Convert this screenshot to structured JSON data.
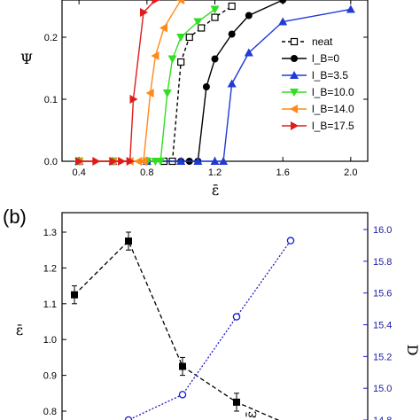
{
  "chart_data": [
    {
      "type": "line",
      "panel_label": "",
      "xlabel": "ε̄",
      "ylabel": "Ψ",
      "xlim": [
        0.3,
        2.1
      ],
      "ylim": [
        0.0,
        0.26
      ],
      "xticks": [
        "0.4",
        "0.8",
        "1.2",
        "1.6",
        "2.0"
      ],
      "yticks": [
        "0.0",
        "0.1",
        "0.2"
      ],
      "legend_position": "inside-lower-right",
      "series": [
        {
          "name": "neat",
          "color": "#000000",
          "marker": "open-square",
          "dash": true,
          "x": [
            0.4,
            0.6,
            0.8,
            0.9,
            0.95,
            1.0,
            1.05,
            1.12,
            1.2,
            1.3
          ],
          "y": [
            0.0,
            0.0,
            0.0,
            0.0,
            0.0,
            0.16,
            0.2,
            0.215,
            0.232,
            0.25
          ]
        },
        {
          "name": "l_B=0",
          "color": "#000000",
          "marker": "filled-circle",
          "dash": false,
          "x": [
            0.4,
            0.6,
            0.8,
            1.0,
            1.05,
            1.1,
            1.15,
            1.2,
            1.3,
            1.4,
            1.6
          ],
          "y": [
            0.0,
            0.0,
            0.0,
            0.0,
            0.0,
            0.0,
            0.12,
            0.165,
            0.205,
            0.235,
            0.26
          ]
        },
        {
          "name": "l_B=3.5",
          "color": "#1f3bd6",
          "marker": "triangle-up",
          "dash": false,
          "x": [
            0.4,
            0.6,
            0.8,
            1.0,
            1.1,
            1.2,
            1.25,
            1.3,
            1.4,
            1.6,
            2.0
          ],
          "y": [
            0.0,
            0.0,
            0.0,
            0.0,
            0.0,
            0.0,
            0.0,
            0.125,
            0.175,
            0.225,
            0.245
          ]
        },
        {
          "name": "l_B=10.0",
          "color": "#33dd22",
          "marker": "triangle-down",
          "dash": false,
          "x": [
            0.4,
            0.6,
            0.8,
            0.85,
            0.88,
            0.92,
            0.95,
            1.0,
            1.1,
            1.2
          ],
          "y": [
            0.0,
            0.0,
            0.0,
            0.0,
            0.0,
            0.11,
            0.165,
            0.2,
            0.225,
            0.245
          ]
        },
        {
          "name": "l_B=14.0",
          "color": "#ff8a1a",
          "marker": "triangle-left",
          "dash": false,
          "x": [
            0.4,
            0.6,
            0.7,
            0.75,
            0.78,
            0.82,
            0.85,
            0.9,
            1.0
          ],
          "y": [
            0.0,
            0.0,
            0.0,
            0.0,
            0.0,
            0.11,
            0.17,
            0.215,
            0.26
          ]
        },
        {
          "name": "l_B=17.5",
          "color": "#e01b1b",
          "marker": "triangle-right",
          "dash": false,
          "x": [
            0.4,
            0.5,
            0.6,
            0.65,
            0.7,
            0.72,
            0.78,
            0.85
          ],
          "y": [
            0.0,
            0.0,
            0.0,
            0.0,
            0.0,
            0.1,
            0.24,
            0.26
          ]
        }
      ]
    },
    {
      "type": "line",
      "panel_label": "(b)",
      "ylabel_left": "ε̄",
      "ylabel_right": "D",
      "ylim_left": [
        0.78,
        1.35
      ],
      "ylim_right": [
        14.8,
        16.1
      ],
      "yticks_left": [
        "0.8",
        "0.9",
        "1.0",
        "1.1",
        "1.2",
        "1.3"
      ],
      "yticks_right": [
        "14.8",
        "15.0",
        "15.2",
        "15.4",
        "15.6",
        "15.8",
        "16.0"
      ],
      "inset_label": "ε̄",
      "series": [
        {
          "name": "ε̄",
          "axis": "left",
          "color": "#000000",
          "marker": "filled-square",
          "dash": true,
          "x": [
            0,
            1,
            2,
            3,
            4
          ],
          "y": [
            1.125,
            1.275,
            0.925,
            0.825,
            0.76
          ],
          "err": [
            0.025,
            0.025,
            0.025,
            0.025,
            0.0
          ]
        },
        {
          "name": "D",
          "axis": "right",
          "color": "#1a1acc",
          "marker": "open-circle",
          "dash": true,
          "x": [
            -0.6,
            0.1,
            1.0,
            2.0,
            3.0,
            4.0
          ],
          "y": [
            14.72,
            14.75,
            14.8,
            14.96,
            15.45,
            15.93
          ]
        }
      ]
    }
  ]
}
